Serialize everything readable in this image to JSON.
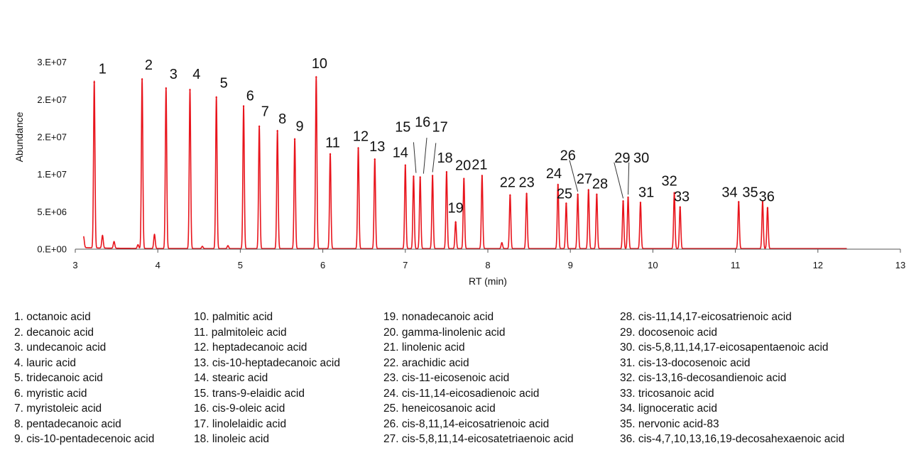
{
  "chart_data": {
    "type": "line",
    "xlabel": "RT (min)",
    "ylabel": "Abundance",
    "xlim": [
      3,
      13
    ],
    "ylim": [
      0,
      30000000
    ],
    "x_ticks": [
      3,
      4,
      5,
      6,
      7,
      8,
      9,
      10,
      11,
      12,
      13
    ],
    "y_ticks": [
      {
        "value": 0,
        "label": "0.E+00"
      },
      {
        "value": 5000000,
        "label": "5.E+06"
      },
      {
        "value": 10000000,
        "label": "1.E+07"
      },
      {
        "value": 15000000,
        "label": "2.E+07"
      },
      {
        "value": 20000000,
        "label": "2.E+07"
      },
      {
        "value": 25000000,
        "label": "3.E+07"
      }
    ],
    "line_color": "#e8141c",
    "trace_range": [
      3.1,
      12.35
    ],
    "peaks": [
      {
        "label": "1",
        "rt": 3.23,
        "height": 22300000
      },
      {
        "label": "2",
        "rt": 3.81,
        "height": 22700000
      },
      {
        "label": "3",
        "rt": 4.1,
        "height": 21500000
      },
      {
        "label": "4",
        "rt": 4.39,
        "height": 21300000
      },
      {
        "label": "5",
        "rt": 4.71,
        "height": 20300000
      },
      {
        "label": "6",
        "rt": 5.04,
        "height": 19100000
      },
      {
        "label": "7",
        "rt": 5.23,
        "height": 16400000
      },
      {
        "label": "8",
        "rt": 5.45,
        "height": 15800000
      },
      {
        "label": "9",
        "rt": 5.66,
        "height": 14700000
      },
      {
        "label": "10",
        "rt": 5.92,
        "height": 23000000
      },
      {
        "label": "11",
        "rt": 6.09,
        "height": 12700000
      },
      {
        "label": "12",
        "rt": 6.43,
        "height": 13500000
      },
      {
        "label": "13",
        "rt": 6.63,
        "height": 12000000
      },
      {
        "label": "14",
        "rt": 7.0,
        "height": 11200000
      },
      {
        "label": "15",
        "rt": 7.1,
        "height": 9700000
      },
      {
        "label": "16",
        "rt": 7.18,
        "height": 9600000
      },
      {
        "label": "17",
        "rt": 7.33,
        "height": 9800000
      },
      {
        "label": "18",
        "rt": 7.5,
        "height": 10300000
      },
      {
        "label": "19",
        "rt": 7.61,
        "height": 3600000
      },
      {
        "label": "20",
        "rt": 7.71,
        "height": 9400000
      },
      {
        "label": "21",
        "rt": 7.93,
        "height": 9800000
      },
      {
        "label": "22",
        "rt": 8.27,
        "height": 7200000
      },
      {
        "label": "23",
        "rt": 8.47,
        "height": 7400000
      },
      {
        "label": "24",
        "rt": 8.85,
        "height": 8600000
      },
      {
        "label": "25",
        "rt": 8.95,
        "height": 6100000
      },
      {
        "label": "26",
        "rt": 9.09,
        "height": 7300000
      },
      {
        "label": "27",
        "rt": 9.22,
        "height": 7900000
      },
      {
        "label": "28",
        "rt": 9.32,
        "height": 7300000
      },
      {
        "label": "29",
        "rt": 9.64,
        "height": 6400000
      },
      {
        "label": "30",
        "rt": 9.7,
        "height": 6900000
      },
      {
        "label": "31",
        "rt": 9.85,
        "height": 6200000
      },
      {
        "label": "32",
        "rt": 10.26,
        "height": 7500000
      },
      {
        "label": "33",
        "rt": 10.33,
        "height": 5600000
      },
      {
        "label": "34",
        "rt": 11.04,
        "height": 6300000
      },
      {
        "label": "35",
        "rt": 11.33,
        "height": 6300000
      },
      {
        "label": "36",
        "rt": 11.39,
        "height": 5500000
      }
    ],
    "minor_peaks": [
      {
        "rt": 3.1,
        "height": 1500000
      },
      {
        "rt": 3.33,
        "height": 1700000
      },
      {
        "rt": 3.47,
        "height": 900000
      },
      {
        "rt": 3.76,
        "height": 500000
      },
      {
        "rt": 3.96,
        "height": 1900000
      },
      {
        "rt": 4.54,
        "height": 300000
      },
      {
        "rt": 4.85,
        "height": 400000
      },
      {
        "rt": 8.17,
        "height": 800000
      }
    ],
    "labels": [
      {
        "text": "1",
        "x": 3.33,
        "y": 23500000
      },
      {
        "text": "2",
        "x": 3.89,
        "y": 24000000
      },
      {
        "text": "3",
        "x": 4.19,
        "y": 22800000
      },
      {
        "text": "4",
        "x": 4.47,
        "y": 22800000
      },
      {
        "text": "5",
        "x": 4.8,
        "y": 21600000
      },
      {
        "text": "6",
        "x": 5.12,
        "y": 19900000
      },
      {
        "text": "7",
        "x": 5.3,
        "y": 17800000
      },
      {
        "text": "8",
        "x": 5.51,
        "y": 16800000
      },
      {
        "text": "9",
        "x": 5.72,
        "y": 15800000
      },
      {
        "text": "10",
        "x": 5.96,
        "y": 24200000
      },
      {
        "text": "11",
        "x": 6.12,
        "y": 13600000
      },
      {
        "text": "12",
        "x": 6.46,
        "y": 14500000
      },
      {
        "text": "13",
        "x": 6.66,
        "y": 13100000
      },
      {
        "text": "14",
        "x": 6.94,
        "y": 12300000
      },
      {
        "text": "15",
        "x": 6.97,
        "y": 15700000
      },
      {
        "text": "16",
        "x": 7.21,
        "y": 16400000
      },
      {
        "text": "17",
        "x": 7.42,
        "y": 15700000
      },
      {
        "text": "18",
        "x": 7.48,
        "y": 11600000
      },
      {
        "text": "19",
        "x": 7.61,
        "y": 4900000
      },
      {
        "text": "20",
        "x": 7.7,
        "y": 10600000
      },
      {
        "text": "21",
        "x": 7.9,
        "y": 10700000
      },
      {
        "text": "22",
        "x": 8.24,
        "y": 8300000
      },
      {
        "text": "23",
        "x": 8.47,
        "y": 8300000
      },
      {
        "text": "24",
        "x": 8.8,
        "y": 9500000
      },
      {
        "text": "25",
        "x": 8.93,
        "y": 6800000
      },
      {
        "text": "26",
        "x": 8.97,
        "y": 11900000
      },
      {
        "text": "27",
        "x": 9.17,
        "y": 8800000
      },
      {
        "text": "28",
        "x": 9.36,
        "y": 8100000
      },
      {
        "text": "29",
        "x": 9.63,
        "y": 11600000
      },
      {
        "text": "30",
        "x": 9.86,
        "y": 11600000
      },
      {
        "text": "31",
        "x": 9.92,
        "y": 7000000
      },
      {
        "text": "32",
        "x": 10.2,
        "y": 8500000
      },
      {
        "text": "33",
        "x": 10.35,
        "y": 6400000
      },
      {
        "text": "34",
        "x": 10.93,
        "y": 7000000
      },
      {
        "text": "35",
        "x": 11.18,
        "y": 7000000
      },
      {
        "text": "36",
        "x": 11.38,
        "y": 6400000
      }
    ],
    "leader_lines": [
      {
        "from": [
          7.1,
          14300000
        ],
        "to": [
          7.13,
          10200000
        ]
      },
      {
        "from": [
          7.26,
          14900000
        ],
        "to": [
          7.22,
          10100000
        ]
      },
      {
        "from": [
          7.37,
          14200000
        ],
        "to": [
          7.33,
          10300000
        ]
      },
      {
        "from": [
          8.99,
          11900000
        ],
        "to": [
          9.09,
          7700000
        ]
      },
      {
        "from": [
          9.53,
          11600000
        ],
        "to": [
          9.64,
          6800000
        ]
      },
      {
        "from": [
          9.71,
          11600000
        ],
        "to": [
          9.7,
          7300000
        ]
      }
    ]
  },
  "legend": {
    "columns": [
      [
        "1. octanoic acid",
        "2. decanoic acid",
        "3. undecanoic acid",
        "4. lauric acid",
        "5. tridecanoic acid",
        "6. myristic acid",
        "7. myristoleic acid",
        "8. pentadecanoic acid",
        "9. cis-10-pentadecenoic acid"
      ],
      [
        "10. palmitic acid",
        "11. palmitoleic acid",
        "12. heptadecanoic acid",
        "13. cis-10-heptadecanoic acid",
        "14. stearic acid",
        "15. trans-9-elaidic acid",
        "16. cis-9-oleic acid",
        "17. linolelaidic acid",
        "18. linoleic acid"
      ],
      [
        "19. nonadecanoic acid",
        "20. gamma-linolenic acid",
        "21. linolenic acid",
        "22. arachidic acid",
        "23. cis-11-eicosenoic acid",
        "24. cis-11,14-eicosadienoic acid",
        "25. heneicosanoic acid",
        "26. cis-8,11,14-eicosatrienoic acid",
        "27. cis-5,8,11,14-eicosatetriaenoic acid"
      ],
      [
        "28. cis-11,14,17-eicosatrienoic acid",
        "29. docosenoic acid",
        "30. cis-5,8,11,14,17-eicosapentaenoic acid",
        "31. cis-13-docosenoic acid",
        "32. cis-13,16-decosandienoic acid",
        "33. tricosanoic acid",
        "34. lignoceratic acid",
        "35. nervonic acid-83",
        "36. cis-4,7,10,13,16,19-decosahexaenoic acid"
      ]
    ]
  }
}
